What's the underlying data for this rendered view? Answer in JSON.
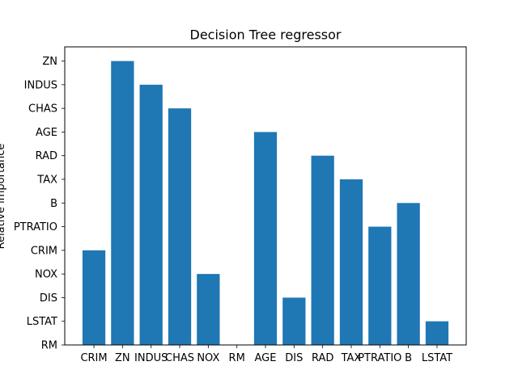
{
  "chart_data": {
    "type": "bar",
    "title": "Decision Tree regressor",
    "xlabel": "",
    "ylabel": "Relative importance",
    "categories": [
      "CRIM",
      "ZN",
      "INDUS",
      "CHAS",
      "NOX",
      "RM",
      "AGE",
      "DIS",
      "RAD",
      "TAX",
      "PTRATIO",
      "B",
      "LSTAT"
    ],
    "values": [
      "CRIM",
      "ZN",
      "INDUS",
      "CHAS",
      "NOX",
      "RM",
      "AGE",
      "DIS",
      "RAD",
      "TAX",
      "PTRATIO",
      "B",
      "LSTAT"
    ],
    "y_levels": [
      "RM",
      "LSTAT",
      "DIS",
      "NOX",
      "CRIM",
      "PTRATIO",
      "B",
      "TAX",
      "RAD",
      "AGE",
      "CHAS",
      "INDUS",
      "ZN"
    ],
    "bar_color": "#1f77b4",
    "grid": false,
    "legend": "none"
  }
}
